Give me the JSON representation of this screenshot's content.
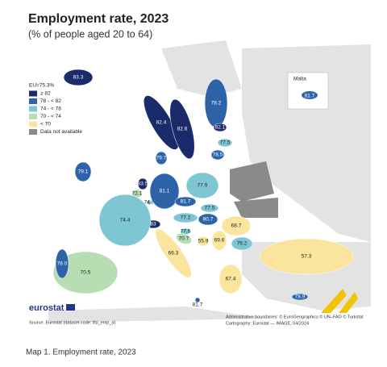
{
  "header": {
    "title": "Employment rate, 2023",
    "subtitle": "(% of people aged 20 to 64)"
  },
  "legend": {
    "title": "EU=75.3%",
    "items": [
      {
        "label": "≥ 82",
        "color": "#1b2a6b"
      },
      {
        "label": "78 - < 82",
        "color": "#2d63a8"
      },
      {
        "label": "74 - < 78",
        "color": "#7ec6d3"
      },
      {
        "label": "70 - < 74",
        "color": "#b7ddb2"
      },
      {
        "label": "< 70",
        "color": "#fbe59c"
      },
      {
        "label": "Data not available",
        "color": "#8a8a8a"
      }
    ]
  },
  "map": {
    "regions": [
      {
        "value": 83.3,
        "color": "#1b2a6b"
      },
      {
        "value": 82.4,
        "color": "#1b2a6b"
      },
      {
        "value": 82.6,
        "color": "#1b2a6b"
      },
      {
        "value": 78.2,
        "color": "#2d63a8"
      },
      {
        "value": 82.1,
        "color": "#1b2a6b"
      },
      {
        "value": 77.5,
        "color": "#7ec6d3"
      },
      {
        "value": 78.5,
        "color": "#2d63a8"
      },
      {
        "value": 79.1,
        "color": "#2d63a8"
      },
      {
        "value": 83.5,
        "color": "#1b2a6b"
      },
      {
        "value": 72.1,
        "color": "#b7ddb2"
      },
      {
        "value": 74.8,
        "color": "#7ec6d3"
      },
      {
        "value": 81.1,
        "color": "#2d63a8"
      },
      {
        "value": 79.7,
        "color": "#2d63a8"
      },
      {
        "value": 77.9,
        "color": "#7ec6d3"
      },
      {
        "value": 81.7,
        "color": "#2d63a8"
      },
      {
        "value": 77.5,
        "color": "#7ec6d3"
      },
      {
        "value": 77.2,
        "color": "#7ec6d3"
      },
      {
        "value": 80.7,
        "color": "#2d63a8"
      },
      {
        "value": 83,
        "color": "#1b2a6b"
      },
      {
        "value": 74.4,
        "color": "#7ec6d3"
      },
      {
        "value": 77.5,
        "color": "#7ec6d3"
      },
      {
        "value": 70.7,
        "color": "#b7ddb2"
      },
      {
        "value": 66.3,
        "color": "#fbe59c"
      },
      {
        "value": 55.9,
        "color": "#fbe59c"
      },
      {
        "value": 69.6,
        "color": "#fbe59c"
      },
      {
        "value": 68.7,
        "color": "#fbe59c"
      },
      {
        "value": 76.2,
        "color": "#7ec6d3"
      },
      {
        "value": 67.4,
        "color": "#fbe59c"
      },
      {
        "value": 57.3,
        "color": "#fbe59c"
      },
      {
        "value": 70.5,
        "color": "#b7ddb2"
      },
      {
        "value": {
          "value": 78,
          "label": "78.0"
        },
        "color": "#2d63a8"
      },
      {
        "value": 78.9,
        "color": "#2d63a8"
      },
      {
        "value": 81.7,
        "color": "#2d63a8"
      }
    ],
    "inset": {
      "label": "Malta",
      "value": 81.7,
      "color": "#2d63a8"
    }
  },
  "footer": {
    "logo": "eurostat",
    "source": "Source: Eurostat (dataset code: lfsi_emp_a)",
    "boundaries": "Administrative boundaries: © EuroGeographics © UN–FAO © Turkstat",
    "cartography": "Cartography: Eurostat — IMAGE, 04/2024"
  },
  "caption": "Map 1. Employment rate, 2023"
}
